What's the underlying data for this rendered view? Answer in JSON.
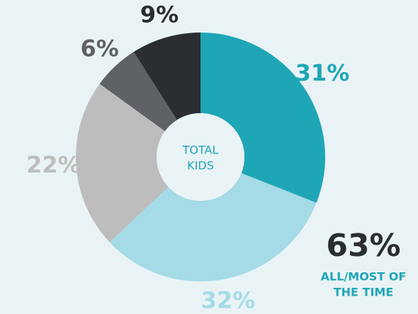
{
  "chart_data": {
    "type": "donut",
    "center_label": [
      "TOTAL",
      "KIDS"
    ],
    "categories": [
      null,
      null,
      null,
      null,
      null
    ],
    "values": [
      31,
      32,
      22,
      6,
      9
    ],
    "value_labels": [
      "31%",
      "32%",
      "22%",
      "6%",
      "9%"
    ],
    "colors": [
      "#1fa6b6",
      "#a4dbe6",
      "#bdbdbe",
      "#5e6165",
      "#2a2d31"
    ],
    "annotation": {
      "value": "63%",
      "text": [
        "ALL/MOST OF",
        "THE TIME"
      ]
    }
  }
}
